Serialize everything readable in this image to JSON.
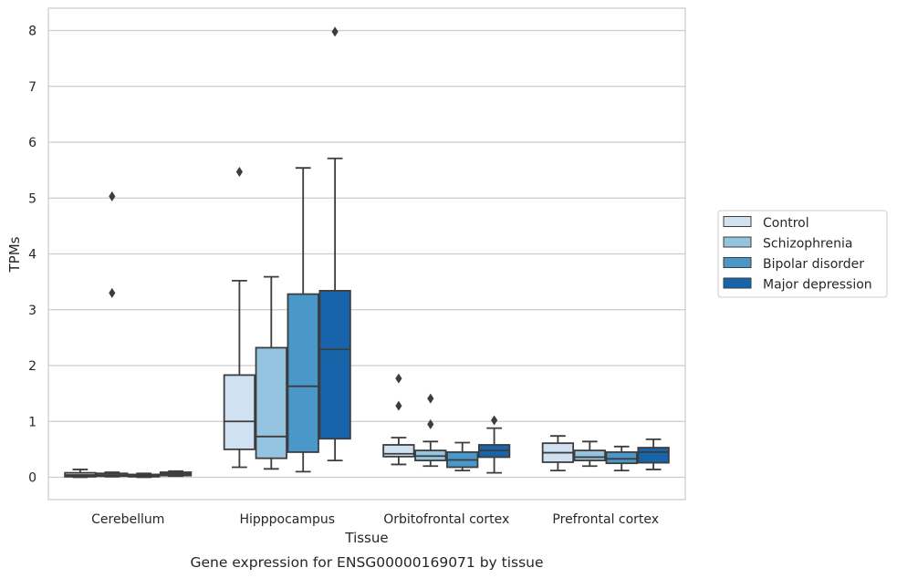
{
  "chart_data": {
    "type": "box",
    "title": "",
    "caption": "Gene expression for ENSG00000169071 by tissue",
    "xlabel": "Tissue",
    "ylabel": "TPMs",
    "ylim": [
      -0.4,
      8.4
    ],
    "yticks": [
      "0",
      "1",
      "2",
      "3",
      "4",
      "5",
      "6",
      "7",
      "8"
    ],
    "ytick_values": [
      0,
      1,
      2,
      3,
      4,
      5,
      6,
      7,
      8
    ],
    "grid": "horizontal",
    "legend_placement": "right",
    "categories": [
      "Cerebellum",
      "Hipppocampus",
      "Orbitofrontal cortex",
      "Prefrontal cortex"
    ],
    "series": [
      {
        "name": "Control",
        "color": "#d0e1f2",
        "boxes": [
          {
            "whislo": 0.0,
            "q1": 0.01,
            "med": 0.04,
            "q3": 0.08,
            "whishi": 0.14,
            "fliers": []
          },
          {
            "whislo": 0.18,
            "q1": 0.5,
            "med": 1.0,
            "q3": 1.83,
            "whishi": 3.52,
            "fliers": [
              5.47
            ]
          },
          {
            "whislo": 0.23,
            "q1": 0.37,
            "med": 0.42,
            "q3": 0.58,
            "whishi": 0.71,
            "fliers": [
              1.28,
              1.77
            ]
          },
          {
            "whislo": 0.12,
            "q1": 0.27,
            "med": 0.44,
            "q3": 0.61,
            "whishi": 0.74,
            "fliers": []
          }
        ]
      },
      {
        "name": "Schizophrenia",
        "color": "#94c4df",
        "boxes": [
          {
            "whislo": 0.01,
            "q1": 0.02,
            "med": 0.04,
            "q3": 0.07,
            "whishi": 0.09,
            "fliers": [
              3.3,
              5.03
            ]
          },
          {
            "whislo": 0.15,
            "q1": 0.34,
            "med": 0.73,
            "q3": 2.32,
            "whishi": 3.59,
            "fliers": []
          },
          {
            "whislo": 0.2,
            "q1": 0.3,
            "med": 0.38,
            "q3": 0.48,
            "whishi": 0.64,
            "fliers": [
              0.95,
              1.41
            ]
          },
          {
            "whislo": 0.2,
            "q1": 0.3,
            "med": 0.36,
            "q3": 0.48,
            "whishi": 0.64,
            "fliers": []
          }
        ]
      },
      {
        "name": "Bipolar disorder",
        "color": "#4a98c9",
        "boxes": [
          {
            "whislo": 0.0,
            "q1": 0.01,
            "med": 0.03,
            "q3": 0.05,
            "whishi": 0.07,
            "fliers": []
          },
          {
            "whislo": 0.1,
            "q1": 0.45,
            "med": 1.63,
            "q3": 3.28,
            "whishi": 5.54,
            "fliers": []
          },
          {
            "whislo": 0.12,
            "q1": 0.18,
            "med": 0.31,
            "q3": 0.45,
            "whishi": 0.62,
            "fliers": []
          },
          {
            "whislo": 0.12,
            "q1": 0.25,
            "med": 0.33,
            "q3": 0.45,
            "whishi": 0.55,
            "fliers": []
          }
        ]
      },
      {
        "name": "Major depression",
        "color": "#1764ab",
        "boxes": [
          {
            "whislo": 0.02,
            "q1": 0.03,
            "med": 0.06,
            "q3": 0.09,
            "whishi": 0.11,
            "fliers": []
          },
          {
            "whislo": 0.3,
            "q1": 0.69,
            "med": 2.29,
            "q3": 3.34,
            "whishi": 5.71,
            "fliers": [
              7.98
            ]
          },
          {
            "whislo": 0.08,
            "q1": 0.36,
            "med": 0.48,
            "q3": 0.58,
            "whishi": 0.88,
            "fliers": [
              1.02
            ]
          },
          {
            "whislo": 0.14,
            "q1": 0.26,
            "med": 0.45,
            "q3": 0.53,
            "whishi": 0.68,
            "fliers": []
          }
        ]
      }
    ]
  }
}
